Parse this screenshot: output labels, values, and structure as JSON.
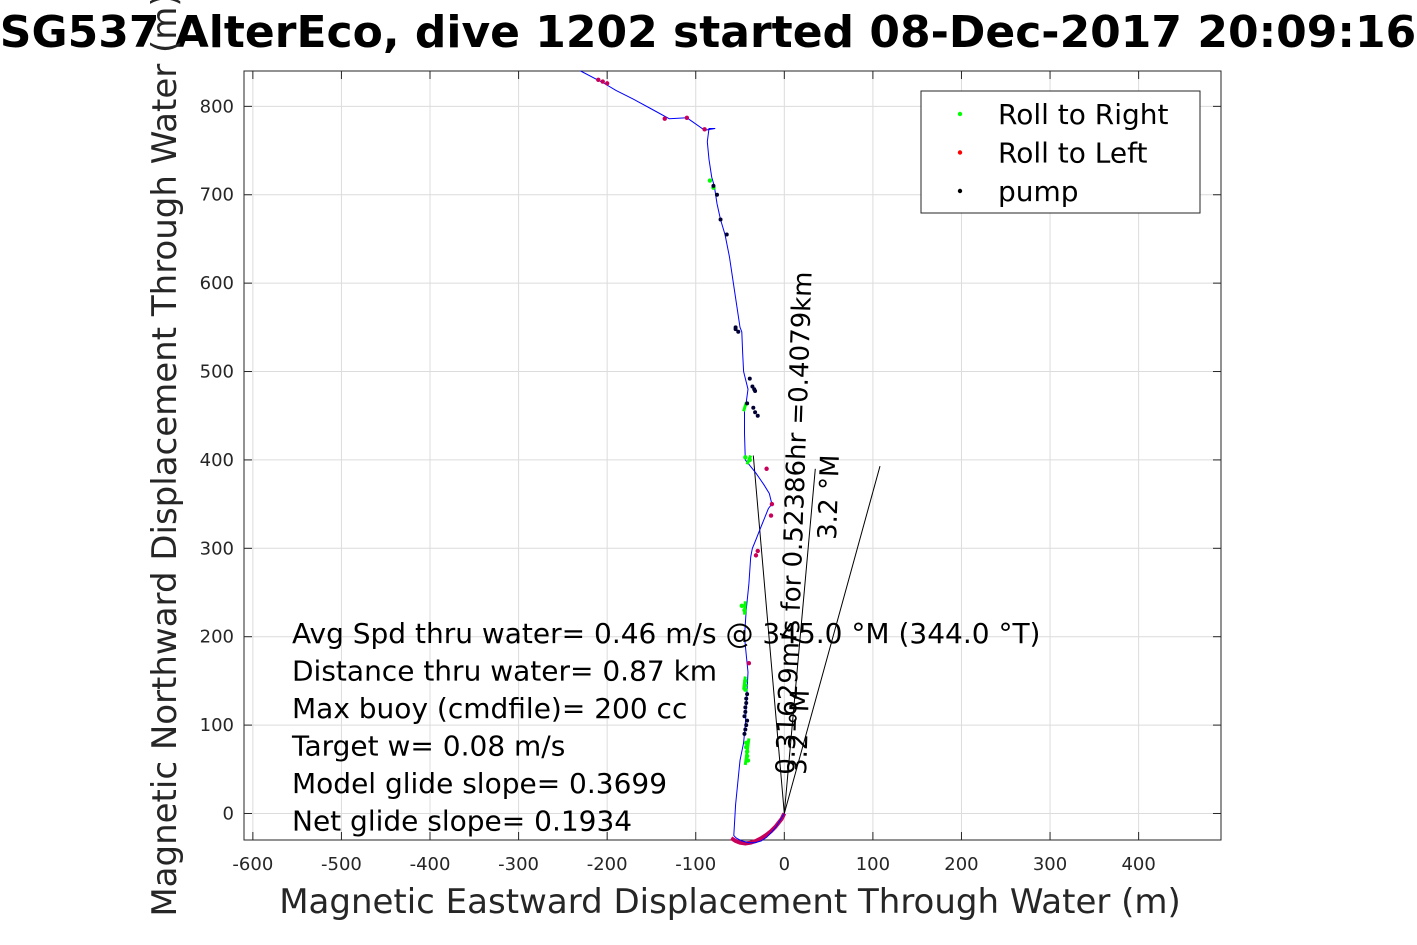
{
  "chart_data": {
    "type": "line",
    "title": "SG537 AlterEco, dive 1202 started 08-Dec-2017 20:09:16",
    "xlabel": "Magnetic Eastward Displacement Through Water (m)",
    "ylabel": "Magnetic Northward Displacement Through Water (m)",
    "xlim": [
      -610,
      493
    ],
    "ylim": [
      -30,
      840
    ],
    "xticks": [
      -600,
      -500,
      -400,
      -300,
      -200,
      -100,
      0,
      100,
      200,
      300,
      400
    ],
    "yticks": [
      0,
      100,
      200,
      300,
      400,
      500,
      600,
      700,
      800
    ],
    "grid": true,
    "legend_position": "top-right",
    "legend": [
      {
        "label": "Roll to Right",
        "color": "#00ff00"
      },
      {
        "label": "Roll to Left",
        "color": "#ff0000"
      },
      {
        "label": "pump",
        "color": "#000000"
      }
    ],
    "track": {
      "color": "#0000ff",
      "x": [
        0,
        -5,
        -10,
        -15,
        -20,
        -26,
        -33,
        -40,
        -48,
        -54,
        -57,
        -55,
        -50,
        -46,
        -44,
        -43,
        -42,
        -41,
        -43,
        -45,
        -43,
        -40,
        -38,
        -37,
        -36,
        -32,
        -28,
        -22,
        -18,
        -14,
        -17,
        -23,
        -32,
        -40,
        -44,
        -45,
        -45,
        -43,
        -41,
        -46,
        -47,
        -48,
        -50,
        -56,
        -62,
        -67,
        -72,
        -76,
        -79,
        -82,
        -85,
        -87,
        -85,
        -78,
        -90,
        -110,
        -130,
        -150,
        -170,
        -190,
        -205,
        -230
      ],
      "y": [
        0,
        -8,
        -16,
        -22,
        -27,
        -31,
        -33,
        -33,
        -31,
        -28,
        -25,
        10,
        60,
        80,
        100,
        120,
        140,
        160,
        180,
        200,
        230,
        260,
        290,
        295,
        300,
        310,
        320,
        335,
        345,
        350,
        362,
        372,
        385,
        395,
        400,
        430,
        460,
        465,
        480,
        500,
        520,
        545,
        550,
        590,
        630,
        655,
        672,
        690,
        710,
        720,
        740,
        760,
        775,
        775,
        773,
        787,
        786,
        797,
        808,
        818,
        827,
        840
      ]
    },
    "roll_right": {
      "color": "#00ff00",
      "x": [
        -41,
        -42,
        -42,
        -43,
        -43,
        -44,
        -44,
        -44,
        -45,
        -48,
        -39,
        -44,
        -80,
        -84
      ],
      "y": [
        60,
        65,
        70,
        75,
        80,
        140,
        145,
        150,
        230,
        235,
        400,
        403,
        708,
        716
      ],
      "heading_segments": [
        {
          "x": [
            -44,
            -40
          ],
          "y": [
            55,
            85
          ]
        },
        {
          "x": [
            -46,
            -44
          ],
          "y": [
            140,
            155
          ]
        },
        {
          "x": [
            -45,
            -44
          ],
          "y": [
            225,
            240
          ]
        },
        {
          "x": [
            -46,
            -43
          ],
          "y": [
            455,
            465
          ]
        },
        {
          "x": [
            -42,
            -38
          ],
          "y": [
            395,
            405
          ]
        }
      ]
    },
    "roll_left": {
      "color": "#ff0000",
      "x": [
        -32,
        -30,
        -15,
        -14,
        -20,
        -200,
        -205,
        -210,
        -110,
        -135,
        -90,
        -40
      ],
      "y": [
        292,
        297,
        337,
        350,
        390,
        826,
        828,
        830,
        787,
        786,
        774,
        170
      ],
      "surface_arc": {
        "x": [
          -60,
          -55,
          -50,
          -44,
          -38,
          -32,
          -26,
          -20,
          -15,
          -10,
          -6,
          -3,
          -1,
          0
        ],
        "y": [
          -28,
          -31,
          -33,
          -34,
          -33,
          -31,
          -28,
          -24,
          -20,
          -15,
          -10,
          -6,
          -2,
          0
        ]
      }
    },
    "pump": {
      "color": "#000000",
      "x": [
        -45,
        -44,
        -44,
        -43,
        -43,
        -42,
        -42,
        -43,
        -44,
        -45,
        -39,
        -36,
        -34,
        -33,
        -42,
        -35,
        -33,
        -30,
        -52,
        -55,
        -55,
        -65,
        -72,
        -76,
        -80
      ],
      "y": [
        110,
        115,
        120,
        125,
        130,
        135,
        105,
        100,
        95,
        90,
        492,
        483,
        480,
        478,
        464,
        459,
        454,
        450,
        545,
        550,
        548,
        655,
        672,
        700,
        710
      ]
    },
    "reference_lines": [
      {
        "x": [
          0,
          -35
        ],
        "y": [
          0,
          405
        ]
      },
      {
        "x": [
          0,
          108
        ],
        "y": [
          0,
          393
        ]
      },
      {
        "x": [
          0,
          35
        ],
        "y": [
          0,
          390
        ]
      }
    ],
    "annotations": [
      "Avg Spd thru water=  0.46 m/s @ 345.0 °M (344.0 °T)",
      "Distance thru water=  0.87 km",
      "Max buoy (cmdfile)= 200 cc",
      "Target w= 0.08 m/s",
      "Model glide slope= 0.3699",
      "Net glide slope= 0.1934"
    ],
    "rotated_labels": [
      "0.31629m/s for 0.52386hr =0.4079km",
      "3.2 °M",
      "3.2 °M"
    ]
  }
}
